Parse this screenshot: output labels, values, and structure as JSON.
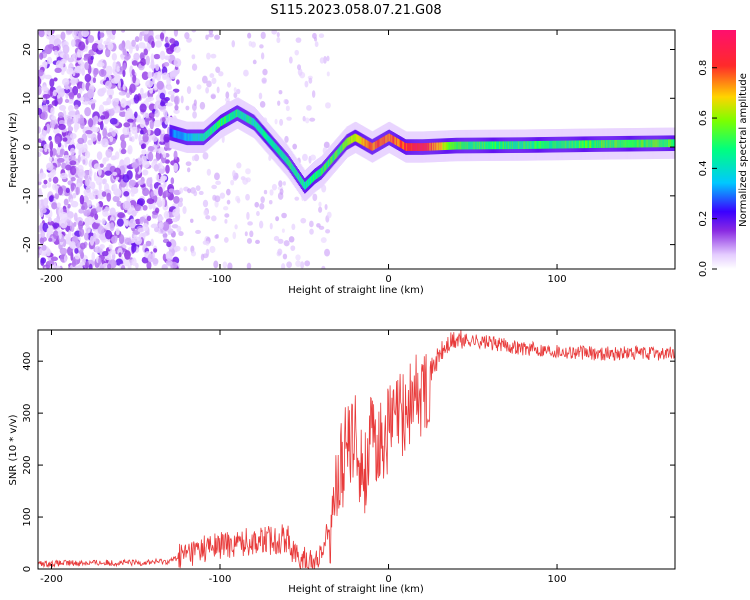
{
  "figure": {
    "title": "S115.2023.058.07.21.G08"
  },
  "colors": {
    "snr_line": "#e83a3a",
    "axes": "#000000",
    "colormap": [
      "#f5e9ff",
      "#c9a0f2",
      "#8a2be2",
      "#3a00ff",
      "#00c8ff",
      "#00e676",
      "#7cff00",
      "#ffd400",
      "#ff2a2a",
      "#ff0f6e"
    ]
  },
  "chart_data": [
    {
      "type": "heatmap",
      "xlabel": "Height of straight line (km)",
      "ylabel": "Frequency (Hz)",
      "xlim": [
        -208,
        170
      ],
      "ylim": [
        -25,
        24
      ],
      "xticks": [
        -200,
        -100,
        0,
        100
      ],
      "yticks": [
        -20,
        -10,
        0,
        10,
        20
      ],
      "colorbar": {
        "label": "Normalized spectral amplitude",
        "range": [
          0.0,
          0.95
        ],
        "ticks": [
          0.0,
          0.2,
          0.4,
          0.6,
          0.8
        ]
      },
      "ridge": {
        "x": [
          -130,
          -120,
          -110,
          -100,
          -90,
          -80,
          -70,
          -60,
          -50,
          -44,
          -40,
          -35,
          -30,
          -25,
          -20,
          -15,
          -10,
          -5,
          0,
          5,
          10,
          15,
          20,
          40,
          80,
          120,
          170
        ],
        "y": [
          3,
          2,
          2,
          5,
          7,
          5,
          1,
          -3,
          -8,
          -6,
          -5,
          -3,
          -1,
          1,
          2,
          1,
          0,
          1,
          2,
          1,
          0,
          0,
          0,
          0.3,
          0.4,
          0.6,
          0.8
        ],
        "amplitude": [
          0.3,
          0.35,
          0.45,
          0.5,
          0.5,
          0.45,
          0.45,
          0.5,
          0.45,
          0.5,
          0.5,
          0.55,
          0.55,
          0.6,
          0.7,
          0.75,
          0.8,
          0.8,
          0.8,
          0.8,
          0.85,
          0.9,
          0.9,
          0.55,
          0.5,
          0.55,
          0.55
        ]
      }
    },
    {
      "type": "line",
      "xlabel": "Height of straight line (km)",
      "ylabel": "SNR (10 * v/v)",
      "xlim": [
        -208,
        170
      ],
      "ylim": [
        0,
        460
      ],
      "xticks": [
        -200,
        -100,
        0,
        100
      ],
      "yticks": [
        0,
        100,
        200,
        300,
        400
      ],
      "series": [
        {
          "x": [
            -208,
            -180,
            -150,
            -130,
            -120,
            -110,
            -100,
            -90,
            -80,
            -70,
            -60,
            -55,
            -50,
            -45,
            -40,
            -35,
            -30,
            -25,
            -20,
            -15,
            -10,
            -5,
            0,
            5,
            10,
            15,
            20,
            25,
            30,
            35,
            40,
            50,
            60,
            80,
            100,
            120,
            140,
            170
          ],
          "y": [
            10,
            12,
            12,
            15,
            30,
            40,
            45,
            50,
            55,
            55,
            60,
            25,
            15,
            10,
            30,
            90,
            170,
            230,
            260,
            180,
            250,
            240,
            270,
            290,
            300,
            330,
            340,
            380,
            410,
            430,
            440,
            440,
            435,
            425,
            420,
            415,
            415,
            415
          ]
        }
      ]
    }
  ]
}
